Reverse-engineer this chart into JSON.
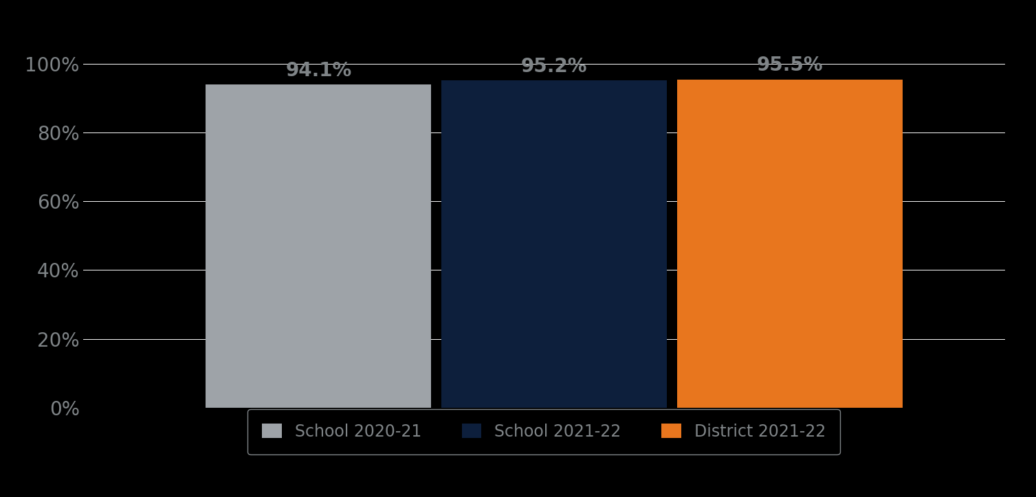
{
  "categories": [
    "School 2020-21",
    "School 2021-22",
    "District 2021-22"
  ],
  "values": [
    94.1,
    95.2,
    95.5
  ],
  "bar_colors": [
    "#9EA3A8",
    "#0D1F3C",
    "#E8761E"
  ],
  "label_color": "#7F8487",
  "background_color": "#000000",
  "tick_color": "#7F8487",
  "grid_color": "#FFFFFF",
  "ytick_labels": [
    "0%",
    "20%",
    "40%",
    "60%",
    "80%",
    "100%"
  ],
  "ytick_values": [
    0,
    20,
    40,
    60,
    80,
    100
  ],
  "ylim": [
    0,
    107
  ],
  "bar_label_fontsize": 20,
  "tick_fontsize": 20,
  "legend_fontsize": 17,
  "legend_frame_color": "#7F8487",
  "legend_text_color": "#7F8487",
  "bar_width": 0.22,
  "x_positions": [
    0.33,
    0.56,
    0.79
  ],
  "xlim": [
    0.1,
    1.0
  ]
}
